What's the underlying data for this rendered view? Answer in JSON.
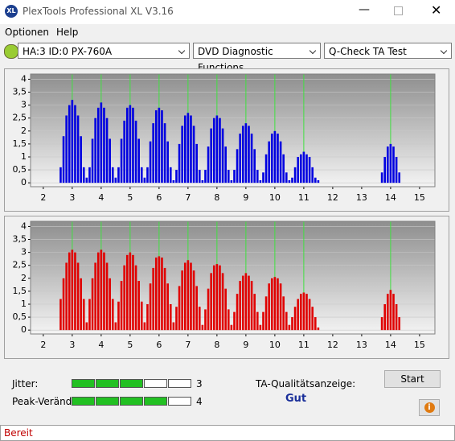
{
  "window": {
    "title": "PlexTools Professional XL V3.16",
    "menu": [
      "Optionen",
      "Help"
    ],
    "toolbar": [
      "HA:3 ID:0  PX-760A",
      "DVD Diagnostic Functions",
      "Q-Check TA Test"
    ]
  },
  "chart_data": [
    {
      "type": "bar",
      "color": "#0000e0",
      "marker_color": "#40e040",
      "markers": [
        3,
        4,
        5,
        6,
        7,
        8,
        9,
        10,
        11,
        14
      ],
      "x": [
        2.6,
        2.7,
        2.8,
        2.9,
        3.0,
        3.1,
        3.2,
        3.3,
        3.4,
        3.5,
        3.6,
        3.7,
        3.8,
        3.9,
        4.0,
        4.1,
        4.2,
        4.3,
        4.4,
        4.5,
        4.6,
        4.7,
        4.8,
        4.9,
        5.0,
        5.1,
        5.2,
        5.3,
        5.4,
        5.5,
        5.6,
        5.7,
        5.8,
        5.9,
        6.0,
        6.1,
        6.2,
        6.3,
        6.4,
        6.5,
        6.6,
        6.7,
        6.8,
        6.9,
        7.0,
        7.1,
        7.2,
        7.3,
        7.4,
        7.5,
        7.6,
        7.7,
        7.8,
        7.9,
        8.0,
        8.1,
        8.2,
        8.3,
        8.4,
        8.5,
        8.6,
        8.7,
        8.8,
        8.9,
        9.0,
        9.1,
        9.2,
        9.3,
        9.4,
        9.5,
        9.6,
        9.7,
        9.8,
        9.9,
        10.0,
        10.1,
        10.2,
        10.3,
        10.4,
        10.5,
        10.6,
        10.7,
        10.8,
        10.9,
        11.0,
        11.1,
        11.2,
        11.3,
        11.4,
        11.5,
        13.7,
        13.8,
        13.9,
        14.0,
        14.1,
        14.2,
        14.3
      ],
      "values": [
        0.6,
        1.8,
        2.6,
        3.0,
        3.2,
        3.0,
        2.6,
        1.8,
        0.6,
        0.2,
        0.6,
        1.7,
        2.5,
        2.9,
        3.1,
        2.9,
        2.5,
        1.7,
        0.6,
        0.2,
        0.6,
        1.7,
        2.4,
        2.9,
        3.0,
        2.9,
        2.4,
        1.7,
        0.6,
        0.2,
        0.6,
        1.6,
        2.3,
        2.8,
        2.9,
        2.8,
        2.3,
        1.6,
        0.6,
        0.1,
        0.5,
        1.5,
        2.2,
        2.6,
        2.7,
        2.6,
        2.2,
        1.5,
        0.5,
        0.1,
        0.5,
        1.4,
        2.1,
        2.5,
        2.6,
        2.5,
        2.1,
        1.4,
        0.5,
        0.1,
        0.5,
        1.3,
        1.9,
        2.2,
        2.3,
        2.2,
        1.9,
        1.3,
        0.5,
        0.1,
        0.4,
        1.1,
        1.6,
        1.9,
        2.0,
        1.9,
        1.6,
        1.1,
        0.4,
        0.1,
        0.2,
        0.6,
        1.0,
        1.1,
        1.2,
        1.1,
        1.0,
        0.6,
        0.2,
        0.1,
        0.4,
        1.0,
        1.4,
        1.5,
        1.4,
        1.0,
        0.4
      ],
      "xlim": [
        1.56,
        15.53
      ],
      "ylim": [
        -0.15,
        4.2
      ],
      "xticks": [
        2,
        3,
        4,
        5,
        6,
        7,
        8,
        9,
        10,
        11,
        12,
        13,
        14,
        15
      ],
      "yticks": [
        0,
        {
          "value": 0.5,
          "label": "0,5"
        },
        1,
        {
          "value": 1.5,
          "label": "1,5"
        },
        2,
        {
          "value": 2.5,
          "label": "2,5"
        },
        3,
        {
          "value": 3.5,
          "label": "3,5"
        },
        4
      ],
      "grid": true
    },
    {
      "type": "bar",
      "color": "#e00000",
      "marker_color": "#40e040",
      "markers": [
        3,
        4,
        5,
        6,
        7,
        8,
        9,
        10,
        11,
        14
      ],
      "x": [
        2.6,
        2.7,
        2.8,
        2.9,
        3.0,
        3.1,
        3.2,
        3.3,
        3.4,
        3.5,
        3.6,
        3.7,
        3.8,
        3.9,
        4.0,
        4.1,
        4.2,
        4.3,
        4.4,
        4.5,
        4.6,
        4.7,
        4.8,
        4.9,
        5.0,
        5.1,
        5.2,
        5.3,
        5.4,
        5.5,
        5.6,
        5.7,
        5.8,
        5.9,
        6.0,
        6.1,
        6.2,
        6.3,
        6.4,
        6.5,
        6.6,
        6.7,
        6.8,
        6.9,
        7.0,
        7.1,
        7.2,
        7.3,
        7.4,
        7.5,
        7.6,
        7.7,
        7.8,
        7.9,
        8.0,
        8.1,
        8.2,
        8.3,
        8.4,
        8.5,
        8.6,
        8.7,
        8.8,
        8.9,
        9.0,
        9.1,
        9.2,
        9.3,
        9.4,
        9.5,
        9.6,
        9.7,
        9.8,
        9.9,
        10.0,
        10.1,
        10.2,
        10.3,
        10.4,
        10.5,
        10.6,
        10.7,
        10.8,
        10.9,
        11.0,
        11.1,
        11.2,
        11.3,
        11.4,
        11.5,
        13.7,
        13.8,
        13.9,
        14.0,
        14.1,
        14.2,
        14.3
      ],
      "values": [
        1.2,
        2.0,
        2.6,
        3.0,
        3.1,
        3.0,
        2.6,
        2.0,
        1.2,
        0.3,
        1.2,
        2.0,
        2.6,
        3.0,
        3.1,
        3.0,
        2.6,
        2.0,
        1.2,
        0.3,
        1.1,
        1.9,
        2.5,
        2.9,
        3.0,
        2.9,
        2.5,
        1.9,
        1.1,
        0.3,
        1.0,
        1.8,
        2.4,
        2.8,
        2.85,
        2.8,
        2.4,
        1.8,
        1.0,
        0.3,
        0.9,
        1.7,
        2.3,
        2.6,
        2.7,
        2.6,
        2.3,
        1.7,
        0.9,
        0.2,
        0.8,
        1.6,
        2.2,
        2.5,
        2.55,
        2.5,
        2.2,
        1.6,
        0.8,
        0.2,
        0.7,
        1.4,
        1.9,
        2.1,
        2.2,
        2.1,
        1.9,
        1.4,
        0.7,
        0.2,
        0.7,
        1.3,
        1.8,
        2.0,
        2.05,
        2.0,
        1.8,
        1.3,
        0.7,
        0.2,
        0.5,
        0.9,
        1.2,
        1.4,
        1.45,
        1.4,
        1.2,
        0.9,
        0.5,
        0.1,
        0.5,
        1.0,
        1.4,
        1.55,
        1.4,
        1.0,
        0.5
      ],
      "xlim": [
        1.56,
        15.53
      ],
      "ylim": [
        -0.15,
        4.2
      ],
      "xticks": [
        2,
        3,
        4,
        5,
        6,
        7,
        8,
        9,
        10,
        11,
        12,
        13,
        14,
        15
      ],
      "yticks": [
        0,
        {
          "value": 0.5,
          "label": "0,5"
        },
        1,
        {
          "value": 1.5,
          "label": "1,5"
        },
        2,
        {
          "value": 2.5,
          "label": "2,5"
        },
        3,
        {
          "value": 3.5,
          "label": "3,5"
        },
        4
      ],
      "grid": true
    }
  ],
  "ratings": {
    "boxes": 5,
    "items": [
      {
        "label": "Jitter:",
        "value": 3
      },
      {
        "label": "Peak-Veränd",
        "value": 4
      }
    ],
    "quality_label": "TA-Qualitätsanzeige:",
    "quality": "Gut",
    "button": "Start"
  },
  "status": "Bereit"
}
